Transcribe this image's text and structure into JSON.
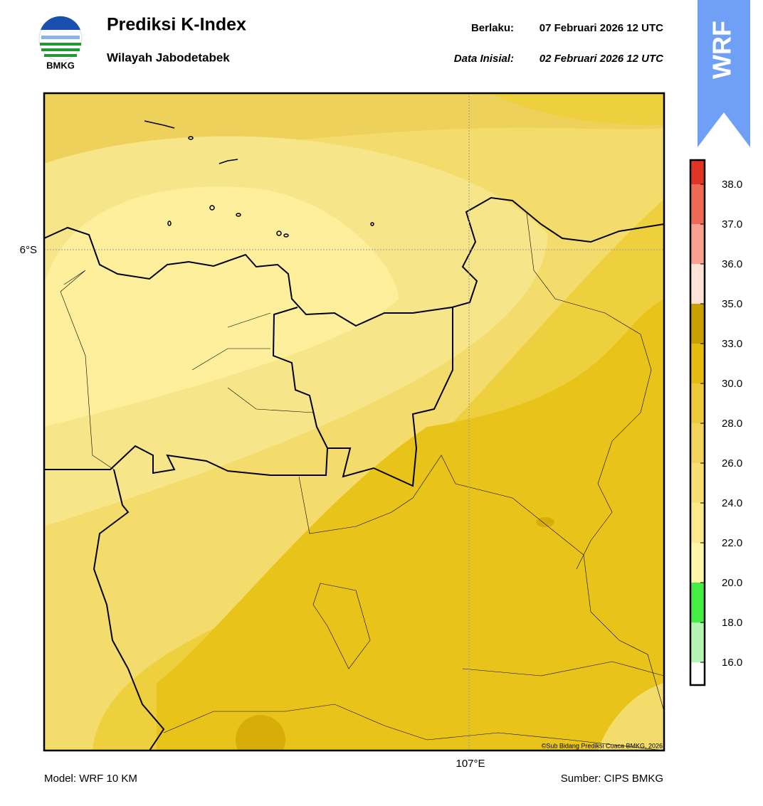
{
  "logo": {
    "text": "BMKG"
  },
  "header": {
    "title": "Prediksi K-Index",
    "subtitle": "Wilayah Jabodetabek",
    "valid_label": "Berlaku:",
    "valid_time": "07 Februari 2026 12 UTC",
    "init_label": "Data Inisial:",
    "init_time": "02 Februari 2026 12 UTC"
  },
  "badge": "WRF",
  "map": {
    "lat_label": "6°S",
    "lon_label": "107°E",
    "credit": "©Sub Bidang Prediksi Cuaca BMKG, 2026"
  },
  "colorbar": {
    "ticks": [
      {
        "value": 16,
        "label": "16.0"
      },
      {
        "value": 18,
        "label": "18.0"
      },
      {
        "value": 20,
        "label": "20.0"
      },
      {
        "value": 22,
        "label": "22.0"
      },
      {
        "value": 24,
        "label": "24.0"
      },
      {
        "value": 26,
        "label": "26.0"
      },
      {
        "value": 28,
        "label": "28.0"
      },
      {
        "value": 30,
        "label": "30.0"
      },
      {
        "value": 33,
        "label": "33.0"
      },
      {
        "value": 35,
        "label": "35.0"
      },
      {
        "value": 36,
        "label": "36.0"
      },
      {
        "value": 37,
        "label": "37.0"
      },
      {
        "value": 38,
        "label": "38.0"
      }
    ],
    "colors": [
      "#ffffff",
      "#b4f5b4",
      "#44ee44",
      "#fff7a6",
      "#fbe98c",
      "#f7df72",
      "#f2d45a",
      "#eec93a",
      "#e6bb10",
      "#c9a000",
      "#ffe2d6",
      "#f9a090",
      "#ef6a55",
      "#e03424"
    ]
  },
  "footer": {
    "model": "Model: WRF 10 KM",
    "source": "Sumber: CIPS BMKG"
  }
}
